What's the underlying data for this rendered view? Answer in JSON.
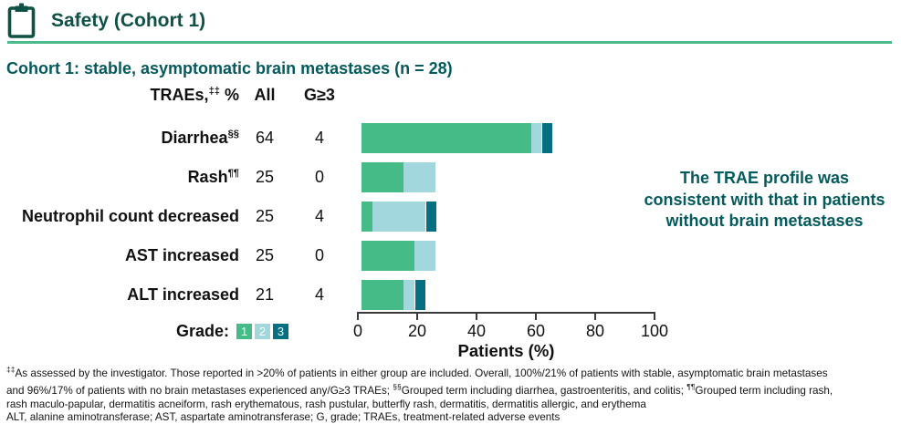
{
  "header": {
    "title": "Safety (Cohort 1)"
  },
  "subtitle": "Cohort 1: stable, asymptomatic brain metastases (n = 28)",
  "table": {
    "col_traes": "TRAEs,‡‡ %",
    "col_all": "All",
    "col_g3": "G≥3"
  },
  "rows": [
    {
      "label": "Diarrhea§§",
      "all": "64",
      "g3": "4"
    },
    {
      "label": "Rash¶¶",
      "all": "25",
      "g3": "0"
    },
    {
      "label": "Neutrophil count decreased",
      "all": "25",
      "g3": "4"
    },
    {
      "label": "AST increased",
      "all": "25",
      "g3": "0"
    },
    {
      "label": "ALT increased",
      "all": "21",
      "g3": "4"
    }
  ],
  "chart_data": {
    "type": "bar",
    "orientation": "horizontal",
    "stacked": true,
    "categories": [
      "Diarrhea",
      "Rash",
      "Neutrophil count decreased",
      "AST increased",
      "ALT increased"
    ],
    "series": [
      {
        "name": "Grade 1",
        "color": "#45bb87",
        "values": [
          57.1,
          14.3,
          3.6,
          17.9,
          14.3
        ]
      },
      {
        "name": "Grade 2",
        "color": "#a2d8dd",
        "values": [
          3.6,
          10.7,
          17.9,
          7.1,
          3.6
        ]
      },
      {
        "name": "Grade 3",
        "color": "#066f82",
        "values": [
          3.6,
          0,
          3.6,
          0,
          3.6
        ]
      }
    ],
    "totals_all_pct": [
      64,
      25,
      25,
      25,
      21
    ],
    "totals_g3_pct": [
      4,
      0,
      4,
      0,
      4
    ],
    "xlabel": "Patients (%)",
    "xlim": [
      0,
      100
    ],
    "xticks": [
      0,
      20,
      40,
      60,
      80,
      100
    ],
    "grid": false,
    "legend": {
      "label": "Grade:",
      "entries": [
        "1",
        "2",
        "3"
      ],
      "position": "bottom-left"
    }
  },
  "annotation": {
    "line1": "The TRAE profile was",
    "line2": "consistent with that in patients",
    "line3": "without brain metastases"
  },
  "footnotes": [
    "‡‡As assessed by the investigator. Those reported in >20% of patients in either group are included. Overall, 100%/21% of patients with stable, asymptomatic brain metastases",
    "and 96%/17% of patients with no brain metastases experienced any/G≥3 TRAEs; §§Grouped term including diarrhea, gastroenteritis, and colitis; ¶¶Grouped term including rash,",
    "rash maculo-papular, dermatitis acneiform, rash erythematous, rash pustular, butterfly rash, dermatitis, dermatitis allergic, and erythema",
    "ALT, alanine aminotransferase; AST, aspartate aminotransferase; G, grade; TRAEs, treatment-related adverse events"
  ],
  "colors": {
    "title_text": "#0f5147",
    "teal_text": "#045a5c",
    "header_rule": "#4cbc8c",
    "grade1": "#45bb87",
    "grade2": "#a2d8dd",
    "grade3": "#066f82",
    "axis": "#3a3a3a"
  }
}
